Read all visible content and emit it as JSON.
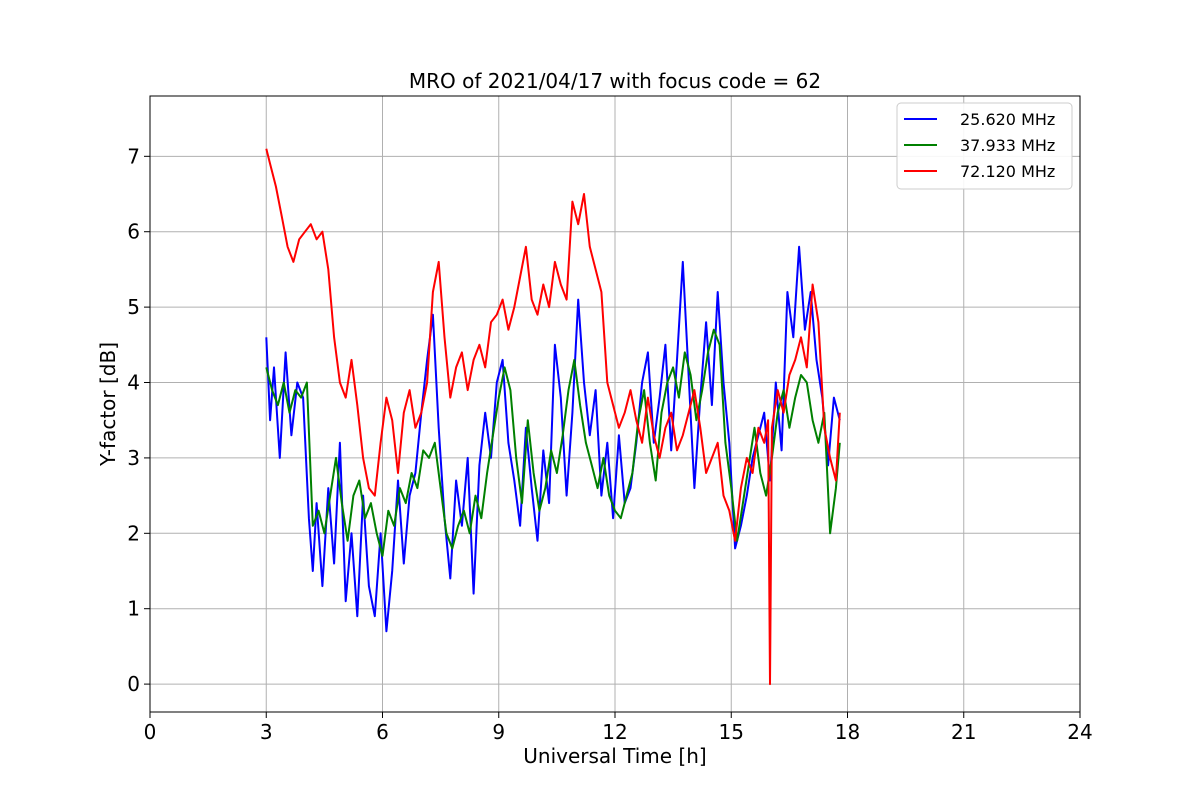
{
  "chart_data": {
    "type": "line",
    "title": "MRO of 2021/04/17 with focus code = 62",
    "xlabel": "Universal Time [h]",
    "ylabel": "Y-factor [dB]",
    "xlim": [
      0,
      24
    ],
    "ylim": [
      -0.37,
      7.8
    ],
    "xticks": [
      0,
      3,
      6,
      9,
      12,
      15,
      18,
      21,
      24
    ],
    "yticks": [
      0,
      1,
      2,
      3,
      4,
      5,
      6,
      7
    ],
    "grid": true,
    "legend_position": "top-right",
    "series": [
      {
        "name": "25.620 MHz",
        "color": "#0000ff",
        "x": [
          3.0,
          3.1,
          3.2,
          3.35,
          3.5,
          3.65,
          3.8,
          3.95,
          4.1,
          4.2,
          4.3,
          4.45,
          4.6,
          4.75,
          4.9,
          5.05,
          5.2,
          5.35,
          5.5,
          5.65,
          5.8,
          5.95,
          6.1,
          6.25,
          6.4,
          6.55,
          6.7,
          6.85,
          7.0,
          7.15,
          7.3,
          7.45,
          7.6,
          7.75,
          7.9,
          8.05,
          8.2,
          8.35,
          8.5,
          8.65,
          8.8,
          8.95,
          9.1,
          9.25,
          9.4,
          9.55,
          9.7,
          9.85,
          10.0,
          10.15,
          10.3,
          10.45,
          10.6,
          10.75,
          10.9,
          11.05,
          11.2,
          11.35,
          11.5,
          11.65,
          11.8,
          11.95,
          12.1,
          12.25,
          12.4,
          12.55,
          12.7,
          12.85,
          13.0,
          13.15,
          13.3,
          13.45,
          13.6,
          13.75,
          13.9,
          14.05,
          14.2,
          14.35,
          14.5,
          14.65,
          14.8,
          14.95,
          15.1,
          15.25,
          15.4,
          15.55,
          15.7,
          15.85,
          16.0,
          16.15,
          16.3,
          16.45,
          16.6,
          16.75,
          16.9,
          17.05,
          17.2,
          17.35,
          17.5,
          17.65,
          17.8
        ],
        "y": [
          4.6,
          3.5,
          4.2,
          3.0,
          4.4,
          3.3,
          4.0,
          3.8,
          2.2,
          1.5,
          2.4,
          1.3,
          2.6,
          1.6,
          3.2,
          1.1,
          2.0,
          0.9,
          2.5,
          1.3,
          0.9,
          2.0,
          0.7,
          1.5,
          2.7,
          1.6,
          2.5,
          2.8,
          3.6,
          4.3,
          4.9,
          3.4,
          2.2,
          1.4,
          2.7,
          2.1,
          3.0,
          1.2,
          2.9,
          3.6,
          3.0,
          4.0,
          4.3,
          3.2,
          2.7,
          2.1,
          3.4,
          2.6,
          1.9,
          3.1,
          2.4,
          4.5,
          3.8,
          2.5,
          3.6,
          5.1,
          4.0,
          3.3,
          3.9,
          2.5,
          3.2,
          2.2,
          3.3,
          2.4,
          2.6,
          3.2,
          4.0,
          4.4,
          3.2,
          3.8,
          4.5,
          3.1,
          4.3,
          5.6,
          4.1,
          2.6,
          3.8,
          4.8,
          3.7,
          5.2,
          4.0,
          3.2,
          1.8,
          2.1,
          2.5,
          3.0,
          3.3,
          3.6,
          2.7,
          4.0,
          3.1,
          5.2,
          4.6,
          5.8,
          4.7,
          5.2,
          4.3,
          3.8,
          2.9,
          3.8,
          3.5
        ]
      },
      {
        "name": "37.933 MHz",
        "color": "#008000",
        "x": [
          3.0,
          3.15,
          3.3,
          3.45,
          3.6,
          3.75,
          3.9,
          4.05,
          4.2,
          4.35,
          4.5,
          4.65,
          4.8,
          4.95,
          5.1,
          5.25,
          5.4,
          5.55,
          5.7,
          5.85,
          6.0,
          6.15,
          6.3,
          6.45,
          6.6,
          6.75,
          6.9,
          7.05,
          7.2,
          7.35,
          7.5,
          7.65,
          7.8,
          7.95,
          8.1,
          8.25,
          8.4,
          8.55,
          8.7,
          8.85,
          9.0,
          9.15,
          9.3,
          9.45,
          9.6,
          9.75,
          9.9,
          10.05,
          10.2,
          10.35,
          10.5,
          10.65,
          10.8,
          10.95,
          11.1,
          11.25,
          11.4,
          11.55,
          11.7,
          11.85,
          12.0,
          12.15,
          12.3,
          12.45,
          12.6,
          12.75,
          12.9,
          13.05,
          13.2,
          13.35,
          13.5,
          13.65,
          13.8,
          13.95,
          14.1,
          14.25,
          14.4,
          14.55,
          14.7,
          14.85,
          15.0,
          15.15,
          15.3,
          15.45,
          15.6,
          15.75,
          15.9,
          16.05,
          16.2,
          16.35,
          16.5,
          16.65,
          16.8,
          16.95,
          17.1,
          17.25,
          17.4,
          17.55,
          17.7,
          17.8
        ],
        "y": [
          4.2,
          3.9,
          3.7,
          4.0,
          3.6,
          3.9,
          3.8,
          4.0,
          2.1,
          2.3,
          2.0,
          2.5,
          3.0,
          2.4,
          1.9,
          2.5,
          2.7,
          2.2,
          2.4,
          2.0,
          1.7,
          2.3,
          2.1,
          2.6,
          2.4,
          2.8,
          2.6,
          3.1,
          3.0,
          3.2,
          2.6,
          2.0,
          1.8,
          2.1,
          2.3,
          2.0,
          2.5,
          2.2,
          2.8,
          3.3,
          3.8,
          4.2,
          3.9,
          3.0,
          2.4,
          3.5,
          2.8,
          2.3,
          2.6,
          3.1,
          2.8,
          3.3,
          3.9,
          4.3,
          3.7,
          3.2,
          2.9,
          2.6,
          3.0,
          2.5,
          2.3,
          2.2,
          2.5,
          2.8,
          3.5,
          3.9,
          3.2,
          2.7,
          3.6,
          4.0,
          4.2,
          3.8,
          4.4,
          4.1,
          3.5,
          3.9,
          4.4,
          4.7,
          4.5,
          3.2,
          2.6,
          1.9,
          2.4,
          2.9,
          3.4,
          2.8,
          2.5,
          3.0,
          3.6,
          3.9,
          3.4,
          3.8,
          4.1,
          4.0,
          3.5,
          3.2,
          3.6,
          2.0,
          2.6,
          3.2
        ]
      },
      {
        "name": "72.120 MHz",
        "color": "#ff0000",
        "x": [
          3.0,
          3.1,
          3.25,
          3.4,
          3.55,
          3.7,
          3.85,
          4.0,
          4.15,
          4.3,
          4.45,
          4.6,
          4.75,
          4.9,
          5.05,
          5.2,
          5.35,
          5.5,
          5.65,
          5.8,
          5.95,
          6.1,
          6.25,
          6.4,
          6.55,
          6.7,
          6.85,
          7.0,
          7.15,
          7.3,
          7.45,
          7.6,
          7.75,
          7.9,
          8.05,
          8.2,
          8.35,
          8.5,
          8.65,
          8.8,
          8.95,
          9.1,
          9.25,
          9.4,
          9.55,
          9.7,
          9.85,
          10.0,
          10.15,
          10.3,
          10.45,
          10.6,
          10.75,
          10.9,
          11.05,
          11.2,
          11.35,
          11.5,
          11.65,
          11.8,
          11.95,
          12.1,
          12.25,
          12.4,
          12.55,
          12.7,
          12.85,
          13.0,
          13.15,
          13.3,
          13.45,
          13.6,
          13.75,
          13.9,
          14.05,
          14.2,
          14.35,
          14.5,
          14.65,
          14.8,
          14.95,
          15.1,
          15.25,
          15.4,
          15.55,
          15.7,
          15.85,
          15.95,
          16.0,
          16.05,
          16.2,
          16.35,
          16.5,
          16.65,
          16.8,
          16.95,
          17.1,
          17.25,
          17.4,
          17.55,
          17.7,
          17.8
        ],
        "y": [
          7.1,
          6.9,
          6.6,
          6.2,
          5.8,
          5.6,
          5.9,
          6.0,
          6.1,
          5.9,
          6.0,
          5.5,
          4.6,
          4.0,
          3.8,
          4.3,
          3.7,
          3.0,
          2.6,
          2.5,
          3.2,
          3.8,
          3.5,
          2.8,
          3.6,
          3.9,
          3.4,
          3.6,
          4.0,
          5.2,
          5.6,
          4.6,
          3.8,
          4.2,
          4.4,
          3.9,
          4.3,
          4.5,
          4.2,
          4.8,
          4.9,
          5.1,
          4.7,
          5.0,
          5.4,
          5.8,
          5.1,
          4.9,
          5.3,
          5.0,
          5.6,
          5.3,
          5.1,
          6.4,
          6.1,
          6.5,
          5.8,
          5.5,
          5.2,
          4.0,
          3.7,
          3.4,
          3.6,
          3.9,
          3.5,
          3.2,
          3.8,
          3.3,
          3.0,
          3.4,
          3.6,
          3.1,
          3.3,
          3.6,
          3.9,
          3.4,
          2.8,
          3.0,
          3.2,
          2.5,
          2.3,
          1.9,
          2.6,
          3.0,
          2.8,
          3.4,
          3.2,
          3.5,
          0.0,
          3.4,
          3.9,
          3.6,
          4.1,
          4.3,
          4.6,
          4.2,
          5.3,
          4.8,
          3.4,
          3.0,
          2.7,
          3.6
        ]
      }
    ]
  }
}
